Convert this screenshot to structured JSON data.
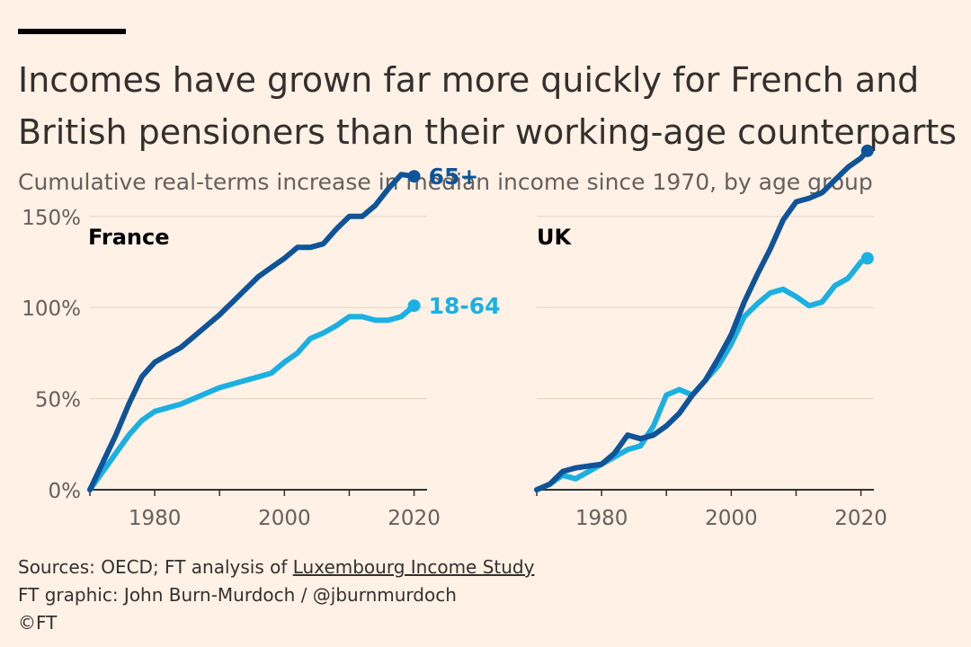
{
  "header": {
    "title": "Incomes have grown far more quickly for French and British pensioners than their working-age counterparts",
    "subtitle": "Cumulative real-terms increase in median income since 1970, by age group"
  },
  "colors": {
    "older": "#0f5499",
    "younger": "#1ab0e3",
    "background": "#fff1e5"
  },
  "chart_data": [
    {
      "type": "line",
      "title": "France",
      "xlabel": "",
      "ylabel": "",
      "xlim": [
        1970,
        2022
      ],
      "ylim": [
        0,
        180
      ],
      "x_ticks": [
        1980,
        2000,
        2020
      ],
      "y_ticks": [
        0,
        50,
        100,
        150
      ],
      "y_tick_labels": [
        "0%",
        "50%",
        "100%",
        "150%"
      ],
      "series": [
        {
          "name": "65+",
          "color": "#0f5499",
          "x": [
            1970,
            1972,
            1974,
            1976,
            1978,
            1980,
            1982,
            1984,
            1986,
            1988,
            1990,
            1992,
            1994,
            1996,
            1998,
            2000,
            2002,
            2004,
            2006,
            2008,
            2010,
            2012,
            2014,
            2016,
            2018,
            2020
          ],
          "y": [
            0,
            15,
            30,
            47,
            62,
            70,
            74,
            78,
            84,
            90,
            96,
            103,
            110,
            117,
            122,
            127,
            133,
            133,
            135,
            143,
            150,
            150,
            156,
            165,
            173,
            172
          ]
        },
        {
          "name": "18-64",
          "color": "#1ab0e3",
          "x": [
            1970,
            1972,
            1974,
            1976,
            1978,
            1980,
            1982,
            1984,
            1986,
            1988,
            1990,
            1992,
            1994,
            1996,
            1998,
            2000,
            2002,
            2004,
            2006,
            2008,
            2010,
            2012,
            2014,
            2016,
            2018,
            2020
          ],
          "y": [
            0,
            10,
            20,
            30,
            38,
            43,
            45,
            47,
            50,
            53,
            56,
            58,
            60,
            62,
            64,
            70,
            75,
            83,
            86,
            90,
            95,
            95,
            93,
            93,
            95,
            101
          ]
        }
      ]
    },
    {
      "type": "line",
      "title": "UK",
      "xlabel": "",
      "ylabel": "",
      "xlim": [
        1970,
        2022
      ],
      "ylim": [
        0,
        180
      ],
      "x_ticks": [
        1980,
        2000,
        2020
      ],
      "series": [
        {
          "name": "65+",
          "color": "#0f5499",
          "x": [
            1970,
            1972,
            1974,
            1976,
            1978,
            1980,
            1982,
            1984,
            1986,
            1988,
            1990,
            1992,
            1994,
            1996,
            1998,
            2000,
            2002,
            2004,
            2006,
            2008,
            2010,
            2012,
            2014,
            2016,
            2018,
            2020,
            2021
          ],
          "y": [
            0,
            3,
            10,
            12,
            13,
            14,
            20,
            30,
            28,
            30,
            35,
            42,
            52,
            60,
            72,
            85,
            103,
            118,
            132,
            148,
            158,
            160,
            163,
            170,
            177,
            182,
            186
          ]
        },
        {
          "name": "18-64",
          "color": "#1ab0e3",
          "x": [
            1970,
            1972,
            1974,
            1976,
            1978,
            1980,
            1982,
            1984,
            1986,
            1988,
            1990,
            1992,
            1994,
            1996,
            1998,
            2000,
            2002,
            2004,
            2006,
            2008,
            2010,
            2012,
            2014,
            2016,
            2018,
            2020,
            2021
          ],
          "y": [
            0,
            3,
            8,
            6,
            10,
            14,
            18,
            22,
            24,
            35,
            52,
            55,
            52,
            60,
            68,
            80,
            95,
            102,
            108,
            110,
            106,
            101,
            103,
            112,
            116,
            125,
            127
          ]
        }
      ]
    }
  ],
  "end_labels": {
    "older": "65+",
    "younger": "18-64"
  },
  "footer": {
    "sources_prefix": "Sources: OECD; FT analysis of ",
    "sources_link": "Luxembourg Income Study",
    "graphic": "FT graphic: John Burn-Murdoch / @jburnmurdoch",
    "copyright": "©FT"
  }
}
